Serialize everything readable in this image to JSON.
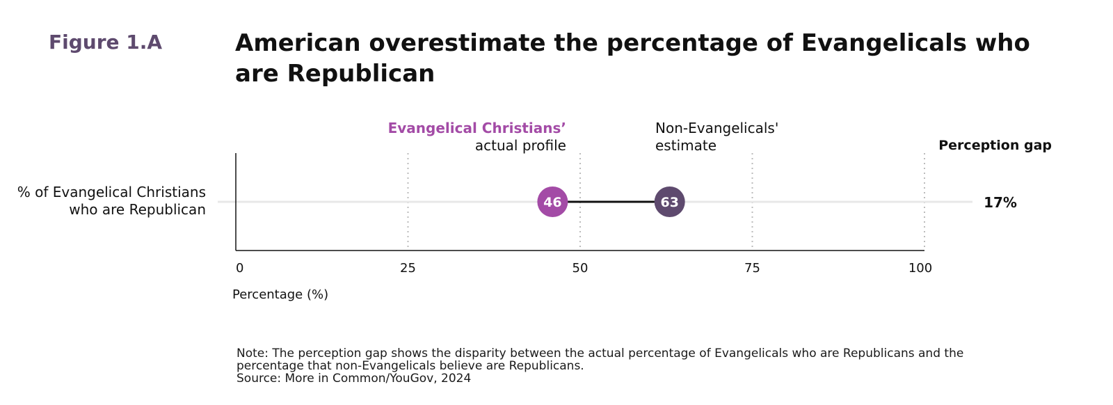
{
  "figure_label": "Figure 1.A",
  "title": "American overestimate the percentage of Evangelicals who are Republican",
  "series_labels": {
    "actual": [
      "Evangelical Christians’",
      "actual profile"
    ],
    "estimate": [
      "Non-Evangelicals'",
      "estimate"
    ]
  },
  "gap_header": "Perception gap",
  "row_label": [
    "% of Evangelical Christians",
    "who are Republican"
  ],
  "colors": {
    "actual": "#a34ba6",
    "estimate": "#5e4a6e",
    "connector": "#111111",
    "grid": "#bbbbbb"
  },
  "chart_data": {
    "type": "dumbbell",
    "xlabel": "Percentage (%)",
    "xlim": [
      0,
      100
    ],
    "xticks": [
      0,
      25,
      50,
      75,
      100
    ],
    "grid": "vertical dotted",
    "rows": [
      {
        "label": "% of Evangelical Christians who are Republican",
        "actual": 46,
        "estimate": 63,
        "gap": "17%"
      }
    ]
  },
  "note": [
    "Note: The perception gap shows the disparity between the actual percentage of Evangelicals who are Republicans and the",
    "percentage that non-Evangelicals believe are Republicans."
  ],
  "source": "Source: More in Common/YouGov, 2024"
}
